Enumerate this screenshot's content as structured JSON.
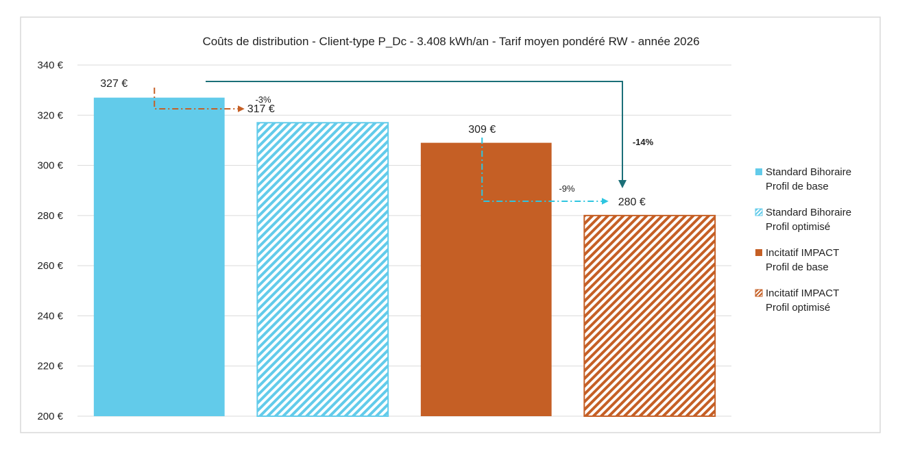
{
  "chart_data": {
    "type": "bar",
    "title": "Coûts de distribution - Client-type P_Dc - 3.408 kWh/an - Tarif moyen pondéré RW - année 2026",
    "xlabel": "",
    "ylabel": "",
    "ylim": [
      200,
      340
    ],
    "yticks": [
      200,
      220,
      240,
      260,
      280,
      300,
      320,
      340
    ],
    "ytick_suffix": " €",
    "grid": true,
    "legend_position": "right",
    "categories": [
      "Standard Bihoraire Profil de base",
      "Standard Bihoraire Profil optimisé",
      "Incitatif IMPACT Profil de base",
      "Incitatif IMPACT Profil optimisé"
    ],
    "values": [
      327,
      317,
      309,
      280
    ],
    "data_labels": [
      "327 €",
      "317 €",
      "309 €",
      "280 €"
    ],
    "series": [
      {
        "name_line1": "Standard Bihoraire",
        "name_line2": "Profil de base",
        "value": 327,
        "color": "#62cbea",
        "pattern": "solid"
      },
      {
        "name_line1": "Standard Bihoraire",
        "name_line2": "Profil optimisé",
        "value": 317,
        "color": "#62cbea",
        "pattern": "hatched"
      },
      {
        "name_line1": "Incitatif IMPACT",
        "name_line2": "Profil de base",
        "value": 309,
        "color": "#c55f25",
        "pattern": "solid"
      },
      {
        "name_line1": "Incitatif IMPACT",
        "name_line2": "Profil optimisé",
        "value": 280,
        "color": "#c55f25",
        "pattern": "hatched"
      }
    ],
    "annotations": [
      {
        "from": 0,
        "to": 1,
        "label": "-3%",
        "color": "#c55f25",
        "style": "dash-dot",
        "bold": false
      },
      {
        "from": 2,
        "to": 3,
        "label": "-9%",
        "color": "#2ec5e0",
        "style": "dash-dot",
        "bold": false
      },
      {
        "from": 0,
        "to": 3,
        "label": "-14%",
        "color": "#1b6f78",
        "style": "solid",
        "bold": true
      }
    ]
  }
}
